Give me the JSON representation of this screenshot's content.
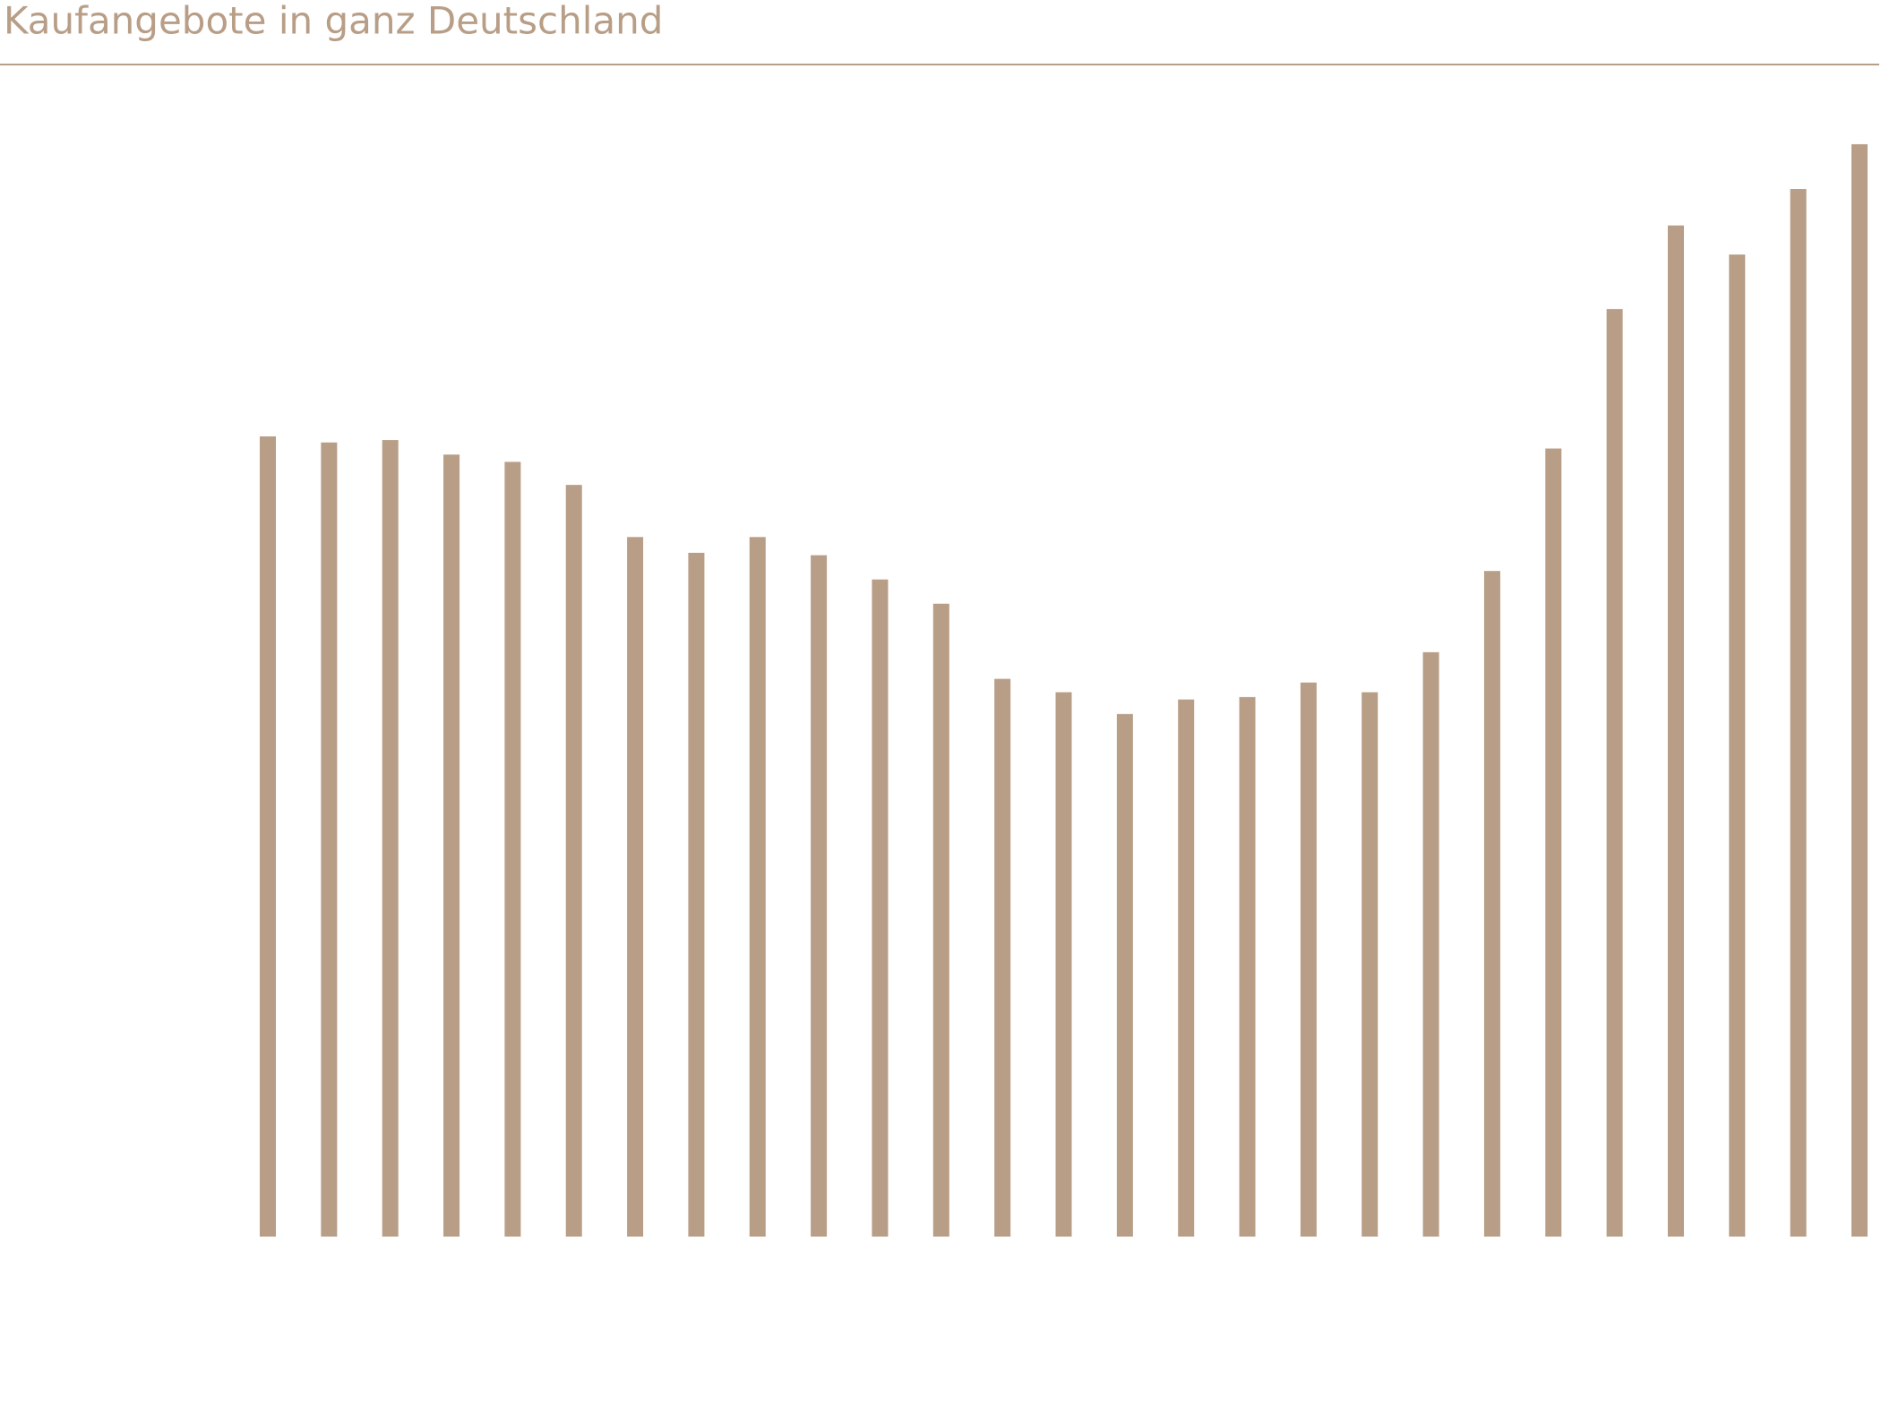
{
  "chart_data": {
    "type": "bar",
    "title": "Kaufangebote in ganz Deutschland",
    "categories": [
      null,
      null,
      null,
      null,
      null,
      null,
      null,
      null,
      null,
      null,
      null,
      null,
      null,
      null,
      null,
      null,
      null,
      null,
      null,
      null,
      null,
      null,
      null,
      null,
      null,
      null,
      null
    ],
    "values": [
      660,
      655,
      657,
      645,
      639,
      620,
      577,
      564,
      577,
      562,
      542,
      522,
      460,
      449,
      431,
      443,
      445,
      457,
      449,
      482,
      549,
      650,
      765,
      834,
      810,
      864,
      901
    ],
    "color": "#b89e86",
    "ylim": [
      0,
      1000
    ]
  }
}
